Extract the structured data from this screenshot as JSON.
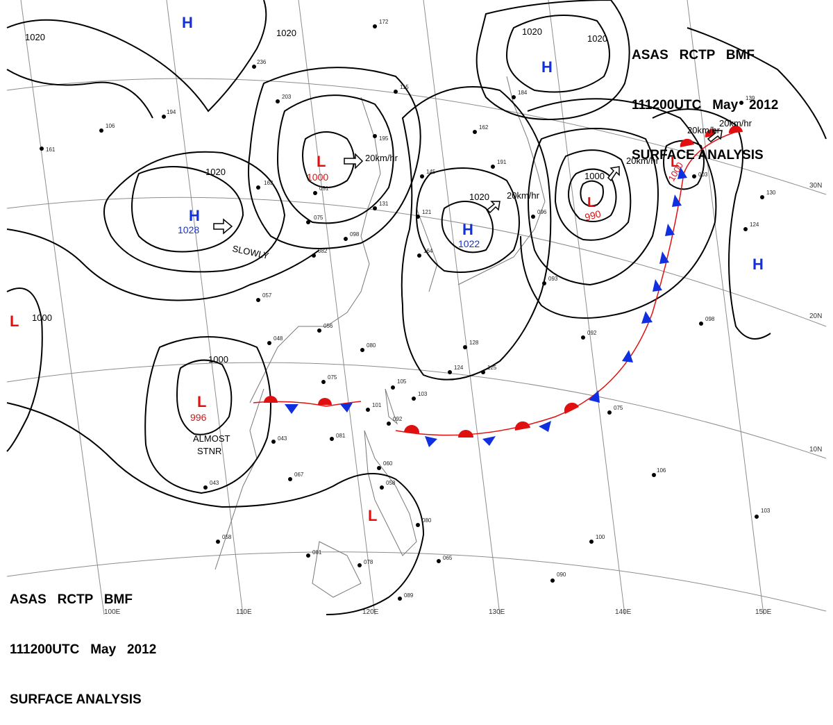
{
  "header": {
    "line1": "ASAS   RCTP   BMF",
    "line2": "111200UTC   May   2012",
    "line3": "SURFACE ANALYSIS"
  },
  "colors": {
    "high": "#1030e0",
    "low": "#e01010",
    "isobar": "#000000",
    "grid": "#8c8c8c",
    "coast": "#777777"
  },
  "lon_labels": [
    "100E",
    "110E",
    "120E",
    "130E",
    "140E",
    "150E"
  ],
  "lat_labels": [
    "30N",
    "20N",
    "10N"
  ],
  "centers": [
    {
      "kind": "H",
      "label": "H",
      "pressure": ""
    },
    {
      "kind": "H",
      "label": "H",
      "pressure": ""
    },
    {
      "kind": "H",
      "label": "H",
      "pressure": "1028"
    },
    {
      "kind": "H",
      "label": "H",
      "pressure": "1022"
    },
    {
      "kind": "H",
      "label": "H",
      "pressure": ""
    },
    {
      "kind": "L",
      "label": "L",
      "pressure": "1000"
    },
    {
      "kind": "L",
      "label": "L",
      "pressure": "990"
    },
    {
      "kind": "L",
      "label": "L",
      "pressure": "1000"
    },
    {
      "kind": "L",
      "label": "L",
      "pressure": "996"
    },
    {
      "kind": "L",
      "label": "L",
      "pressure": ""
    },
    {
      "kind": "L",
      "label": "L",
      "pressure": ""
    }
  ],
  "isobar_labels": [
    "1020",
    "1020",
    "1020",
    "1020",
    "1020",
    "1020",
    "1000",
    "1000",
    "1000",
    "1020"
  ],
  "motions": [
    "20km/hr",
    "20km/hr",
    "20km/hr",
    "20km/hr",
    "20km/hr",
    "SLOWLY",
    "ALMOST",
    "STNR"
  ],
  "stations": [
    "172",
    "115",
    "236",
    "194",
    "106",
    "161",
    "203",
    "163",
    "051",
    "075",
    "082",
    "057",
    "048",
    "056",
    "080",
    "075",
    "105",
    "103",
    "101",
    "092",
    "081",
    "043",
    "067",
    "043",
    "058",
    "081",
    "078",
    "060",
    "058",
    "080",
    "065",
    "089",
    "090",
    "100",
    "106",
    "103",
    "145",
    "121",
    "195",
    "131",
    "098",
    "162",
    "191",
    "164",
    "128",
    "124",
    "125",
    "184",
    "096",
    "093",
    "092",
    "098",
    "075",
    "130",
    "124",
    "139",
    "003"
  ]
}
